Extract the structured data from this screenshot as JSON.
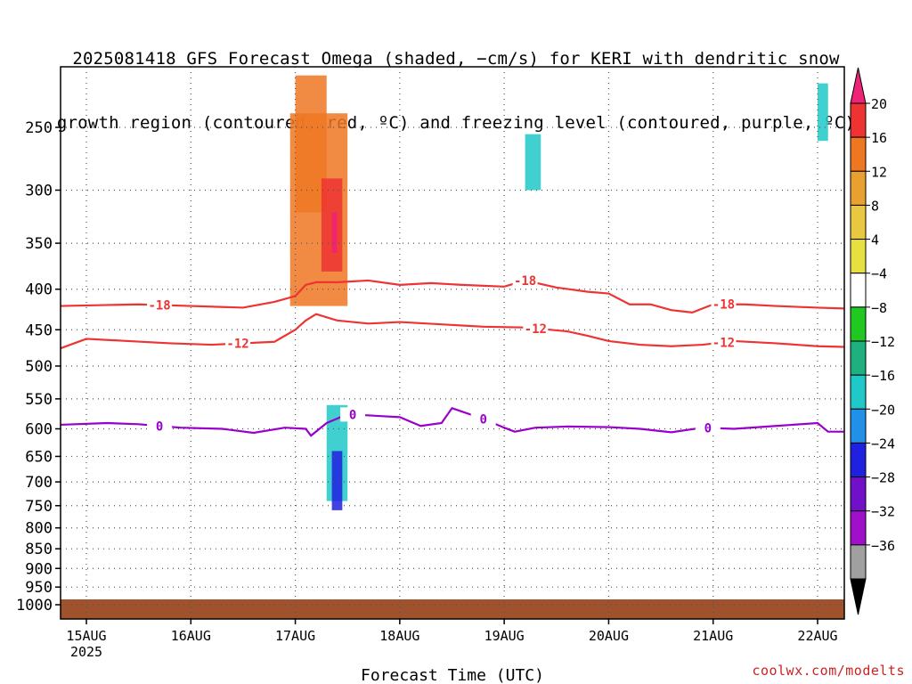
{
  "title_lines": [
    "2025081418 GFS Forecast Omega (shaded, −cm/s) for KERI with dendritic snow",
    "growth region (contoured, red, ºC) and freezing level (contoured, purple, ºC)"
  ],
  "credit": "coolwx.com/modelts",
  "colors": {
    "dsgz": "#ee3333",
    "freezing": "#9900cc",
    "ground": "#a0522d",
    "grid": "#555555"
  },
  "chart_data": {
    "type": "heatmap",
    "xlabel": "Forecast Time (UTC)",
    "ylabel": "",
    "x_ticks": [
      {
        "label": "15AUG",
        "sub": "2025",
        "t": 0
      },
      {
        "label": "16AUG",
        "sub": "",
        "t": 1
      },
      {
        "label": "17AUG",
        "sub": "",
        "t": 2
      },
      {
        "label": "18AUG",
        "sub": "",
        "t": 3
      },
      {
        "label": "19AUG",
        "sub": "",
        "t": 4
      },
      {
        "label": "20AUG",
        "sub": "",
        "t": 5
      },
      {
        "label": "21AUG",
        "sub": "",
        "t": 6
      },
      {
        "label": "22AUG",
        "sub": "",
        "t": 7
      }
    ],
    "x_range_days": [
      -0.25,
      7.25
    ],
    "y_ticks": [
      "250",
      "300",
      "350",
      "400",
      "450",
      "500",
      "550",
      "600",
      "650",
      "700",
      "750",
      "800",
      "850",
      "900",
      "950",
      "1000"
    ],
    "y_values": [
      250,
      300,
      350,
      400,
      450,
      500,
      550,
      600,
      650,
      700,
      750,
      800,
      850,
      900,
      950,
      1000
    ],
    "y_range_hpa": [
      200,
      1000
    ],
    "colorbar": {
      "labels": [
        "20",
        "16",
        "12",
        "8",
        "4",
        "−4",
        "−8",
        "−12",
        "−16",
        "−20",
        "−24",
        "−28",
        "−32",
        "−36"
      ],
      "colors": [
        "#ee3333",
        "#ee7722",
        "#e8a030",
        "#e8c840",
        "#e8e040",
        "#ffffff",
        "#22c822",
        "#20b080",
        "#20c8c8",
        "#2090e8",
        "#2020e0",
        "#7010c8",
        "#a010c8",
        "#a0a0a0"
      ],
      "top_arrow": "#ee2277",
      "bottom_arrow": "#000000"
    },
    "contours": [
      {
        "name": "-18",
        "color": "#ee3333",
        "label_at": [
          0.7,
          4.2,
          6.1
        ],
        "points": [
          [
            -0.25,
            420
          ],
          [
            0.5,
            418
          ],
          [
            1.0,
            420
          ],
          [
            1.5,
            422
          ],
          [
            1.8,
            415
          ],
          [
            2.0,
            408
          ],
          [
            2.1,
            395
          ],
          [
            2.2,
            392
          ],
          [
            2.4,
            392
          ],
          [
            2.7,
            390
          ],
          [
            3.0,
            395
          ],
          [
            3.3,
            393
          ],
          [
            3.6,
            395
          ],
          [
            4.0,
            397
          ],
          [
            4.2,
            390
          ],
          [
            4.5,
            398
          ],
          [
            4.8,
            403
          ],
          [
            5.0,
            405
          ],
          [
            5.2,
            418
          ],
          [
            5.4,
            418
          ],
          [
            5.6,
            425
          ],
          [
            5.8,
            428
          ],
          [
            6.0,
            418
          ],
          [
            6.3,
            418
          ],
          [
            6.6,
            420
          ],
          [
            7.0,
            422
          ],
          [
            7.25,
            423
          ]
        ]
      },
      {
        "name": "-12",
        "color": "#ee3333",
        "label_at": [
          1.45,
          4.3,
          6.1
        ],
        "points": [
          [
            -0.25,
            475
          ],
          [
            0,
            462
          ],
          [
            0.4,
            465
          ],
          [
            0.8,
            468
          ],
          [
            1.2,
            470
          ],
          [
            1.5,
            468
          ],
          [
            1.8,
            466
          ],
          [
            2.0,
            450
          ],
          [
            2.1,
            438
          ],
          [
            2.2,
            430
          ],
          [
            2.4,
            438
          ],
          [
            2.7,
            442
          ],
          [
            3.0,
            440
          ],
          [
            3.4,
            443
          ],
          [
            3.8,
            446
          ],
          [
            4.2,
            447
          ],
          [
            4.6,
            452
          ],
          [
            4.8,
            458
          ],
          [
            5.0,
            465
          ],
          [
            5.3,
            470
          ],
          [
            5.6,
            472
          ],
          [
            5.9,
            470
          ],
          [
            6.2,
            465
          ],
          [
            6.6,
            468
          ],
          [
            7.0,
            472
          ],
          [
            7.25,
            473
          ]
        ]
      },
      {
        "name": "0",
        "color": "#9900cc",
        "label_at": [
          0.7,
          2.55,
          3.8,
          5.95
        ],
        "points": [
          [
            -0.25,
            593
          ],
          [
            0.2,
            590
          ],
          [
            0.5,
            592
          ],
          [
            0.9,
            598
          ],
          [
            1.3,
            600
          ],
          [
            1.6,
            607
          ],
          [
            1.9,
            598
          ],
          [
            2.1,
            600
          ],
          [
            2.15,
            612
          ],
          [
            2.3,
            590
          ],
          [
            2.5,
            575
          ],
          [
            2.8,
            578
          ],
          [
            3.0,
            580
          ],
          [
            3.2,
            595
          ],
          [
            3.4,
            590
          ],
          [
            3.5,
            565
          ],
          [
            3.8,
            583
          ],
          [
            4.0,
            598
          ],
          [
            4.1,
            605
          ],
          [
            4.3,
            598
          ],
          [
            4.6,
            596
          ],
          [
            5.0,
            597
          ],
          [
            5.3,
            600
          ],
          [
            5.6,
            606
          ],
          [
            5.9,
            598
          ],
          [
            6.2,
            600
          ],
          [
            6.6,
            595
          ],
          [
            7.0,
            590
          ],
          [
            7.1,
            605
          ],
          [
            7.25,
            605
          ]
        ]
      }
    ],
    "cells": [
      {
        "x": [
          2.0,
          2.3
        ],
        "y": [
          215,
          320
        ],
        "v": 12
      },
      {
        "x": [
          1.95,
          2.5
        ],
        "y": [
          240,
          420
        ],
        "v": 12
      },
      {
        "x": [
          2.25,
          2.45
        ],
        "y": [
          290,
          380
        ],
        "v": 16
      },
      {
        "x": [
          2.35,
          2.4
        ],
        "y": [
          320,
          360
        ],
        "v": 20
      },
      {
        "x": [
          2.3,
          2.5
        ],
        "y": [
          560,
          740
        ],
        "v": -12
      },
      {
        "x": [
          2.35,
          2.45
        ],
        "y": [
          640,
          760
        ],
        "v": -20
      },
      {
        "x": [
          7.0,
          7.1
        ],
        "y": [
          220,
          260
        ],
        "v": -12
      },
      {
        "x": [
          4.2,
          4.35
        ],
        "y": [
          255,
          300
        ],
        "v": -12
      }
    ]
  }
}
